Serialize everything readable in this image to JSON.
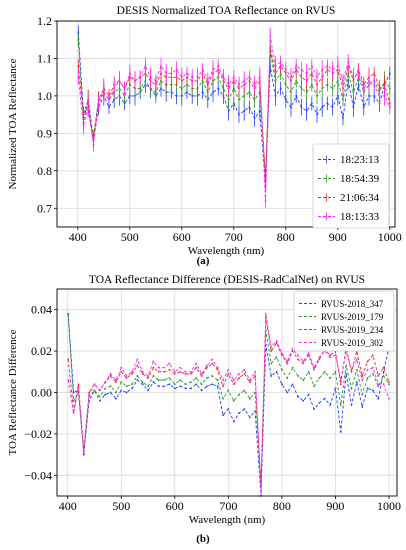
{
  "captions": [
    "(a)",
    "(b)"
  ],
  "chart_data": [
    {
      "type": "line",
      "title": "DESIS Normalized TOA Reflectance on RVUS",
      "xlabel": "Wavelength (nm)",
      "ylabel": "Normalized TOA Reflectance",
      "xlim": [
        360,
        1010
      ],
      "ylim": [
        0.65,
        1.2
      ],
      "xticks": [
        400,
        500,
        600,
        700,
        800,
        900,
        1000
      ],
      "yticks": [
        0.7,
        0.8,
        0.9,
        1.0,
        1.1,
        1.2
      ],
      "ytick_labels": [
        "0.7",
        "0.8",
        "0.9",
        "1.0",
        "1.1",
        "1.2"
      ],
      "grid": true,
      "error_bars": true,
      "legend_position": "lower-right",
      "x": [
        401,
        411,
        420,
        430,
        440,
        450,
        460,
        470,
        480,
        490,
        500,
        510,
        520,
        530,
        540,
        550,
        560,
        570,
        580,
        590,
        600,
        610,
        620,
        630,
        640,
        650,
        660,
        670,
        680,
        690,
        700,
        710,
        720,
        730,
        740,
        750,
        761,
        770,
        780,
        790,
        800,
        810,
        820,
        830,
        840,
        850,
        860,
        870,
        880,
        890,
        900,
        910,
        920,
        930,
        940,
        950,
        960,
        970,
        980,
        990,
        1000
      ],
      "series": [
        {
          "name": "18:23:13",
          "color": "#1f3fff",
          "values": [
            1.17,
            0.95,
            0.97,
            0.88,
            0.97,
            1.0,
            0.97,
            0.99,
            1.0,
            0.98,
            1.0,
            1.0,
            1.01,
            1.03,
            1.02,
            1.0,
            1.02,
            1.01,
            1.01,
            1.0,
            1.0,
            1.01,
            1.0,
            1.0,
            1.01,
            0.99,
            1.01,
            1.02,
            1.0,
            0.96,
            0.98,
            0.95,
            0.96,
            0.97,
            0.94,
            0.96,
            0.76,
            1.08,
            1.0,
            1.02,
            0.99,
            0.97,
            1.0,
            0.97,
            0.96,
            0.98,
            0.95,
            0.97,
            0.98,
            0.97,
            1.0,
            0.94,
            1.04,
            0.97,
            1.03,
            0.97,
            1.0,
            1.0,
            0.98,
            1.03,
            1.06
          ]
        },
        {
          "name": "18:54:39",
          "color": "#2a9a2a",
          "values": [
            1.15,
            0.93,
            0.99,
            0.89,
            0.99,
            1.01,
            0.99,
            1.01,
            1.02,
            1.0,
            1.03,
            1.02,
            1.02,
            1.04,
            1.02,
            1.01,
            1.04,
            1.03,
            1.03,
            1.03,
            1.02,
            1.03,
            1.02,
            1.02,
            1.04,
            1.01,
            1.04,
            1.05,
            1.02,
            0.99,
            1.02,
            0.99,
            1.0,
            1.01,
            0.99,
            1.01,
            0.78,
            1.12,
            1.04,
            1.06,
            1.03,
            1.01,
            1.04,
            1.02,
            1.01,
            1.03,
            1.0,
            1.02,
            1.03,
            1.02,
            1.04,
            0.99,
            1.06,
            1.01,
            1.05,
            1.01,
            1.03,
            1.04,
            1.01,
            1.04,
            1.02
          ]
        },
        {
          "name": "21:06:34",
          "color": "#ee2a2a",
          "values": [
            1.08,
            0.95,
            0.99,
            0.88,
            0.99,
            1.02,
            1.0,
            1.03,
            1.04,
            1.02,
            1.05,
            1.04,
            1.05,
            1.06,
            1.04,
            1.03,
            1.06,
            1.05,
            1.05,
            1.05,
            1.04,
            1.05,
            1.04,
            1.04,
            1.06,
            1.03,
            1.06,
            1.07,
            1.04,
            1.02,
            1.04,
            1.02,
            1.03,
            1.04,
            1.02,
            1.04,
            0.78,
            1.13,
            1.06,
            1.08,
            1.06,
            1.04,
            1.07,
            1.05,
            1.04,
            1.06,
            1.03,
            1.05,
            1.07,
            1.06,
            1.07,
            1.02,
            1.08,
            1.04,
            1.07,
            1.03,
            1.05,
            1.06,
            1.02,
            1.03,
            0.98
          ]
        },
        {
          "name": "18:13:33",
          "color": "#ff22ff",
          "values": [
            1.05,
            0.92,
            0.97,
            0.87,
            0.98,
            1.01,
            0.99,
            1.02,
            1.04,
            1.02,
            1.06,
            1.04,
            1.05,
            1.08,
            1.05,
            1.04,
            1.08,
            1.06,
            1.06,
            1.07,
            1.05,
            1.06,
            1.05,
            1.05,
            1.07,
            1.04,
            1.07,
            1.08,
            1.05,
            1.03,
            1.05,
            1.03,
            1.04,
            1.05,
            1.03,
            1.05,
            0.72,
            1.16,
            1.08,
            1.09,
            1.07,
            1.05,
            1.08,
            1.07,
            1.06,
            1.08,
            1.05,
            1.07,
            1.08,
            1.07,
            1.08,
            1.04,
            1.09,
            1.05,
            1.06,
            1.02,
            1.04,
            1.03,
            1.0,
            1.0,
            0.97
          ]
        }
      ]
    },
    {
      "type": "line",
      "title": "TOA Reflectance Difference (DESIS-RadCalNet) on RVUS",
      "xlabel": "Wavelength (nm)",
      "ylabel": "TOA Reflectance Difference",
      "xlim": [
        380,
        1015
      ],
      "ylim": [
        -0.05,
        0.05
      ],
      "xticks": [
        400,
        500,
        600,
        700,
        800,
        900,
        1000
      ],
      "yticks": [
        -0.04,
        -0.02,
        0.0,
        0.02,
        0.04
      ],
      "ytick_labels": [
        "−0.04",
        "−0.02",
        "0.00",
        "0.02",
        "0.04"
      ],
      "grid": true,
      "legend_position": "top-right",
      "x": [
        401,
        411,
        420,
        430,
        440,
        450,
        460,
        470,
        480,
        490,
        500,
        510,
        520,
        530,
        540,
        550,
        560,
        570,
        580,
        590,
        600,
        610,
        620,
        630,
        640,
        650,
        660,
        670,
        680,
        690,
        700,
        710,
        720,
        730,
        740,
        750,
        761,
        770,
        780,
        790,
        800,
        810,
        820,
        830,
        840,
        850,
        860,
        870,
        880,
        890,
        900,
        910,
        920,
        930,
        940,
        950,
        960,
        970,
        980,
        990,
        1000
      ],
      "series": [
        {
          "name": "RVUS-2018_347",
          "color": "#1f3fff",
          "values": [
            0.038,
            0.0,
            0.001,
            -0.03,
            -0.004,
            0.001,
            -0.004,
            -0.001,
            0.0,
            -0.003,
            0.001,
            0.0,
            0.002,
            0.006,
            0.004,
            0.001,
            0.005,
            0.003,
            0.003,
            0.004,
            0.002,
            0.003,
            0.002,
            0.002,
            0.004,
            0.001,
            0.003,
            0.004,
            0.003,
            -0.011,
            -0.008,
            -0.014,
            -0.01,
            -0.008,
            -0.012,
            -0.009,
            -0.05,
            0.023,
            0.008,
            0.01,
            0.004,
            0.0,
            0.004,
            -0.002,
            -0.004,
            -0.001,
            -0.008,
            -0.005,
            -0.003,
            -0.006,
            0.002,
            -0.019,
            0.009,
            -0.006,
            0.005,
            -0.007,
            0.002,
            0.001,
            -0.003,
            0.01,
            0.022
          ]
        },
        {
          "name": "RVUS-2019_179",
          "color": "#2a9a2a",
          "values": [
            0.037,
            -0.004,
            0.0,
            -0.029,
            -0.002,
            0.001,
            -0.002,
            0.002,
            0.003,
            0.0,
            0.005,
            0.003,
            0.004,
            0.008,
            0.005,
            0.003,
            0.008,
            0.006,
            0.006,
            0.007,
            0.004,
            0.006,
            0.004,
            0.005,
            0.007,
            0.004,
            0.007,
            0.008,
            0.006,
            -0.003,
            0.001,
            -0.004,
            -0.001,
            0.001,
            -0.003,
            0.0,
            -0.044,
            0.03,
            0.014,
            0.017,
            0.011,
            0.007,
            0.012,
            0.008,
            0.006,
            0.01,
            0.003,
            0.007,
            0.01,
            0.007,
            0.01,
            -0.006,
            0.013,
            0.002,
            0.011,
            -0.001,
            0.007,
            0.009,
            0.003,
            0.008,
            0.004
          ]
        },
        {
          "name": "RVUS-2019_234",
          "color": "#ee2a2a",
          "values": [
            0.016,
            -0.009,
            0.004,
            -0.028,
            0.0,
            0.004,
            0.001,
            0.005,
            0.008,
            0.005,
            0.01,
            0.007,
            0.009,
            0.013,
            0.009,
            0.007,
            0.012,
            0.01,
            0.01,
            0.011,
            0.009,
            0.01,
            0.009,
            0.009,
            0.012,
            0.008,
            0.012,
            0.014,
            0.011,
            0.003,
            0.009,
            0.004,
            0.007,
            0.009,
            0.005,
            0.008,
            -0.045,
            0.036,
            0.02,
            0.024,
            0.018,
            0.014,
            0.02,
            0.016,
            0.014,
            0.018,
            0.011,
            0.016,
            0.021,
            0.018,
            0.02,
            0.004,
            0.022,
            0.01,
            0.02,
            0.008,
            0.015,
            0.018,
            0.008,
            0.012,
            0.005
          ]
        },
        {
          "name": "RVUS-2019_302",
          "color": "#ff22ff",
          "values": [
            0.006,
            -0.01,
            0.002,
            -0.029,
            -0.001,
            0.004,
            0.001,
            0.005,
            0.009,
            0.006,
            0.012,
            0.008,
            0.01,
            0.016,
            0.01,
            0.008,
            0.015,
            0.012,
            0.012,
            0.014,
            0.01,
            0.012,
            0.01,
            0.01,
            0.014,
            0.009,
            0.013,
            0.016,
            0.012,
            0.006,
            0.011,
            0.006,
            0.009,
            0.011,
            0.006,
            0.01,
            -0.048,
            0.038,
            0.022,
            0.025,
            0.019,
            0.015,
            0.021,
            0.018,
            0.015,
            0.019,
            0.012,
            0.017,
            0.02,
            0.017,
            0.018,
            0.006,
            0.02,
            0.011,
            0.016,
            0.006,
            0.011,
            0.012,
            0.004,
            0.004,
            -0.003
          ]
        }
      ]
    }
  ]
}
